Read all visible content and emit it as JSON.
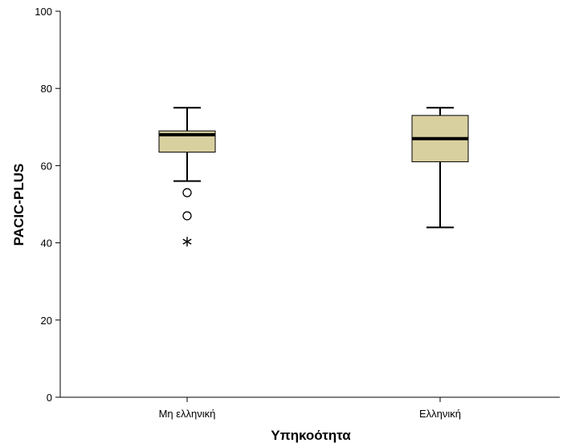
{
  "chart_data": {
    "type": "boxplot",
    "xlabel": "Υπηκοότητα",
    "ylabel": "PACIC-PLUS",
    "ylim": [
      0,
      100
    ],
    "yticks": [
      "0",
      "20",
      "40",
      "60",
      "80",
      "100"
    ],
    "grid": false,
    "box_color": "#d9d0a0",
    "line_color": "#000000",
    "series": [
      {
        "category": "Μη ελληνική",
        "min": 56,
        "q1": 63.5,
        "median": 68,
        "q3": 69,
        "max": 75,
        "outliers": [
          53,
          47
        ],
        "extremes": [
          40.3
        ]
      },
      {
        "category": "Ελληνική",
        "min": 44,
        "q1": 61,
        "median": 67,
        "q3": 73,
        "max": 75,
        "outliers": [],
        "extremes": []
      }
    ]
  }
}
